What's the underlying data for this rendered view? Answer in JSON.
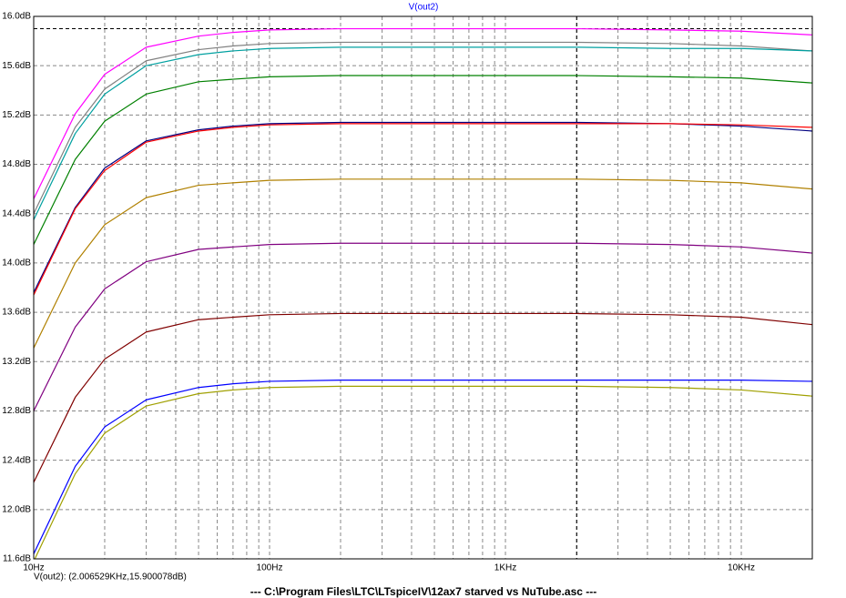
{
  "chart_data": {
    "type": "line",
    "title": "V(out2)",
    "cursor_readout": "V(out2): (2.006529KHz,15.900078dB)",
    "cursor": {
      "x": 2006.529,
      "y": 15.900078
    },
    "footer": "---  C:\\Program Files\\LTC\\LTspiceIV\\12ax7  starved  vs  NuTube.asc  ---",
    "log_x": true,
    "grid": true,
    "xlim": [
      10,
      20000
    ],
    "xticks": [
      {
        "value": 10,
        "label": "10Hz"
      },
      {
        "value": 100,
        "label": "100Hz"
      },
      {
        "value": 1000,
        "label": "1KHz"
      },
      {
        "value": 10000,
        "label": "10KHz"
      }
    ],
    "ylim": [
      11.6,
      16.0
    ],
    "yticks": [
      {
        "value": 11.6,
        "label": "11.6dB"
      },
      {
        "value": 12.0,
        "label": "12.0dB"
      },
      {
        "value": 12.4,
        "label": "12.4dB"
      },
      {
        "value": 12.8,
        "label": "12.8dB"
      },
      {
        "value": 13.2,
        "label": "13.2dB"
      },
      {
        "value": 13.6,
        "label": "13.6dB"
      },
      {
        "value": 14.0,
        "label": "14.0dB"
      },
      {
        "value": 14.4,
        "label": "14.4dB"
      },
      {
        "value": 14.8,
        "label": "14.8dB"
      },
      {
        "value": 15.2,
        "label": "15.2dB"
      },
      {
        "value": 15.6,
        "label": "15.6dB"
      },
      {
        "value": 16.0,
        "label": "16.0dB"
      }
    ],
    "x": [
      10,
      15,
      20,
      30,
      50,
      70,
      100,
      200,
      500,
      1000,
      2000,
      5000,
      10000,
      20000
    ],
    "series": [
      {
        "color": "#ff00ff",
        "values": [
          14.52,
          15.21,
          15.53,
          15.75,
          15.84,
          15.87,
          15.89,
          15.9,
          15.9,
          15.9,
          15.9,
          15.89,
          15.88,
          15.85
        ]
      },
      {
        "color": "#808080",
        "values": [
          14.4,
          15.1,
          15.41,
          15.64,
          15.73,
          15.76,
          15.78,
          15.79,
          15.79,
          15.79,
          15.79,
          15.78,
          15.76,
          15.72
        ]
      },
      {
        "color": "#00a0a0",
        "values": [
          14.35,
          15.05,
          15.37,
          15.6,
          15.69,
          15.72,
          15.74,
          15.75,
          15.75,
          15.75,
          15.75,
          15.74,
          15.74,
          15.72
        ]
      },
      {
        "color": "#008000",
        "values": [
          14.15,
          14.84,
          15.15,
          15.37,
          15.47,
          15.49,
          15.51,
          15.52,
          15.52,
          15.52,
          15.52,
          15.51,
          15.5,
          15.46
        ]
      },
      {
        "color": "#000080",
        "values": [
          13.76,
          14.45,
          14.77,
          14.99,
          15.08,
          15.11,
          15.13,
          15.14,
          15.14,
          15.14,
          15.14,
          15.13,
          15.11,
          15.07
        ]
      },
      {
        "color": "#ff0000",
        "values": [
          13.74,
          14.44,
          14.75,
          14.98,
          15.07,
          15.1,
          15.12,
          15.13,
          15.13,
          15.13,
          15.13,
          15.13,
          15.12,
          15.1
        ]
      },
      {
        "color": "#b08000",
        "values": [
          13.31,
          14.0,
          14.31,
          14.53,
          14.63,
          14.65,
          14.67,
          14.68,
          14.68,
          14.68,
          14.68,
          14.67,
          14.65,
          14.6
        ]
      },
      {
        "color": "#800080",
        "values": [
          12.8,
          13.48,
          13.79,
          14.01,
          14.11,
          14.13,
          14.15,
          14.16,
          14.16,
          14.16,
          14.16,
          14.15,
          14.13,
          14.08
        ]
      },
      {
        "color": "#800000",
        "values": [
          12.22,
          12.91,
          13.22,
          13.44,
          13.54,
          13.56,
          13.58,
          13.59,
          13.59,
          13.59,
          13.59,
          13.58,
          13.56,
          13.5
        ]
      },
      {
        "color": "#0000ff",
        "values": [
          11.64,
          12.35,
          12.67,
          12.89,
          12.99,
          13.02,
          13.04,
          13.05,
          13.05,
          13.05,
          13.05,
          13.05,
          13.05,
          13.04
        ]
      },
      {
        "color": "#a0a000",
        "values": [
          11.58,
          12.29,
          12.62,
          12.84,
          12.94,
          12.97,
          12.99,
          13.0,
          13.0,
          13.0,
          13.0,
          12.99,
          12.97,
          12.92
        ]
      }
    ]
  }
}
